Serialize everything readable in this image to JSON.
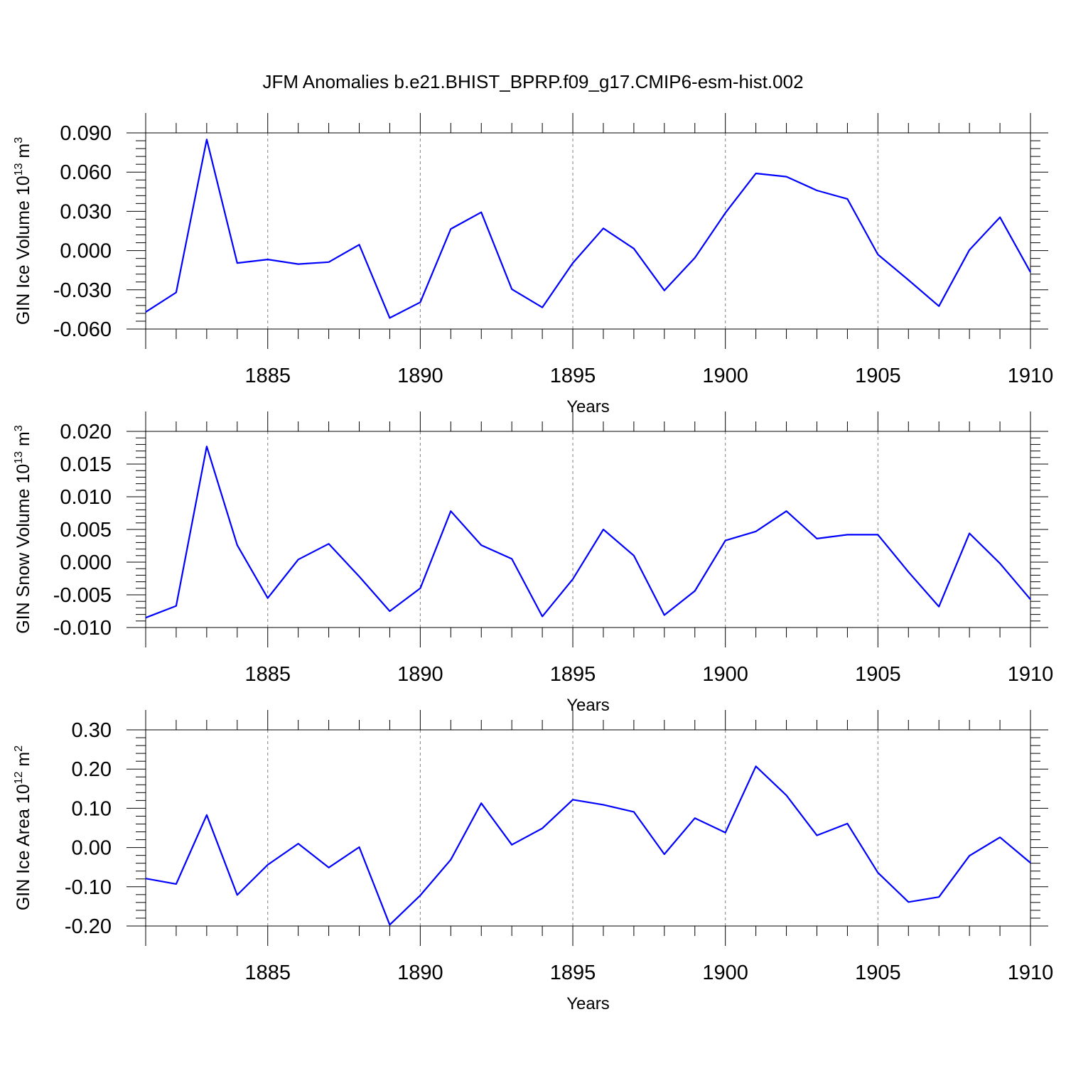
{
  "figure": {
    "title": "JFM Anomalies b.e21.BHIST_BPRP.f09_g17.CMIP6-esm-hist.002",
    "series_color": "#0000ff"
  },
  "chart_data": [
    {
      "type": "line",
      "ylabel": {
        "base": "GIN Ice Volume 10",
        "exp": "13",
        "unit": " m",
        "unit_exp": "3"
      },
      "xlabel": "Years",
      "xlim": [
        1881,
        1910
      ],
      "ylim": [
        -0.06,
        0.09
      ],
      "yticks": [
        -0.06,
        -0.03,
        0.0,
        0.03,
        0.06,
        0.09
      ],
      "ytick_labels": [
        "-0.060",
        "-0.030",
        "0.000",
        "0.030",
        "0.060",
        "0.090"
      ],
      "xticks": [
        1885,
        1890,
        1895,
        1900,
        1905,
        1910
      ],
      "xtick_labels": [
        "1885",
        "1890",
        "1895",
        "1900",
        "1905",
        "1910"
      ],
      "grid": "vertical dashed at major x ticks",
      "x": [
        1881,
        1882,
        1883,
        1884,
        1885,
        1886,
        1887,
        1888,
        1889,
        1890,
        1891,
        1892,
        1893,
        1894,
        1895,
        1896,
        1897,
        1898,
        1899,
        1900,
        1901,
        1902,
        1903,
        1904,
        1905,
        1906,
        1907,
        1908,
        1909,
        1910
      ],
      "values": [
        -0.047,
        -0.032,
        0.085,
        -0.0095,
        -0.0068,
        -0.0103,
        -0.0088,
        0.0045,
        -0.0515,
        -0.0395,
        0.0165,
        0.0293,
        -0.0295,
        -0.0435,
        -0.0095,
        0.017,
        0.0015,
        -0.0305,
        -0.0055,
        0.0288,
        0.059,
        0.0565,
        0.046,
        0.0395,
        -0.003,
        -0.0225,
        -0.0425,
        0.0005,
        0.0255,
        -0.0165
      ]
    },
    {
      "type": "line",
      "ylabel": {
        "base": "GIN Snow Volume 10",
        "exp": "13",
        "unit": " m",
        "unit_exp": "3"
      },
      "xlabel": "Years",
      "xlim": [
        1881,
        1910
      ],
      "ylim": [
        -0.01,
        0.02
      ],
      "yticks": [
        -0.01,
        -0.005,
        0.0,
        0.005,
        0.01,
        0.015,
        0.02
      ],
      "ytick_labels": [
        "-0.010",
        "-0.005",
        "0.000",
        "0.005",
        "0.010",
        "0.015",
        "0.020"
      ],
      "xticks": [
        1885,
        1890,
        1895,
        1900,
        1905,
        1910
      ],
      "xtick_labels": [
        "1885",
        "1890",
        "1895",
        "1900",
        "1905",
        "1910"
      ],
      "grid": "vertical dashed at major x ticks",
      "x": [
        1881,
        1882,
        1883,
        1884,
        1885,
        1886,
        1887,
        1888,
        1889,
        1890,
        1891,
        1892,
        1893,
        1894,
        1895,
        1896,
        1897,
        1898,
        1899,
        1900,
        1901,
        1902,
        1903,
        1904,
        1905,
        1906,
        1907,
        1908,
        1909,
        1910
      ],
      "values": [
        -0.0085,
        -0.0067,
        0.0177,
        0.0026,
        -0.0055,
        0.0004,
        0.0028,
        -0.0022,
        -0.0075,
        -0.004,
        0.0078,
        0.0026,
        0.0005,
        -0.0083,
        -0.0026,
        0.005,
        0.001,
        -0.0081,
        -0.0044,
        0.0033,
        0.0047,
        0.0078,
        0.0036,
        0.0042,
        0.0042,
        -0.0015,
        -0.0068,
        0.0044,
        -0.0002,
        -0.0057
      ]
    },
    {
      "type": "line",
      "ylabel": {
        "base": "GIN Ice Area 10",
        "exp": "12",
        "unit": " m",
        "unit_exp": "2"
      },
      "xlabel": "Years",
      "xlim": [
        1881,
        1910
      ],
      "ylim": [
        -0.2,
        0.3
      ],
      "yticks": [
        -0.2,
        -0.1,
        0.0,
        0.1,
        0.2,
        0.3
      ],
      "ytick_labels": [
        "-0.20",
        "-0.10",
        "0.00",
        "0.10",
        "0.20",
        "0.30"
      ],
      "xticks": [
        1885,
        1890,
        1895,
        1900,
        1905,
        1910
      ],
      "xtick_labels": [
        "1885",
        "1890",
        "1895",
        "1900",
        "1905",
        "1910"
      ],
      "grid": "vertical dashed at major x ticks",
      "x": [
        1881,
        1882,
        1883,
        1884,
        1885,
        1886,
        1887,
        1888,
        1889,
        1890,
        1891,
        1892,
        1893,
        1894,
        1895,
        1896,
        1897,
        1898,
        1899,
        1900,
        1901,
        1902,
        1903,
        1904,
        1905,
        1906,
        1907,
        1908,
        1909,
        1910
      ],
      "values": [
        -0.079,
        -0.093,
        0.083,
        -0.121,
        -0.044,
        0.01,
        -0.051,
        0.001,
        -0.197,
        -0.122,
        -0.031,
        0.113,
        0.007,
        0.049,
        0.122,
        0.109,
        0.091,
        -0.017,
        0.075,
        0.038,
        0.207,
        0.133,
        0.031,
        0.061,
        -0.064,
        -0.139,
        -0.126,
        -0.021,
        0.026,
        -0.039
      ]
    }
  ]
}
